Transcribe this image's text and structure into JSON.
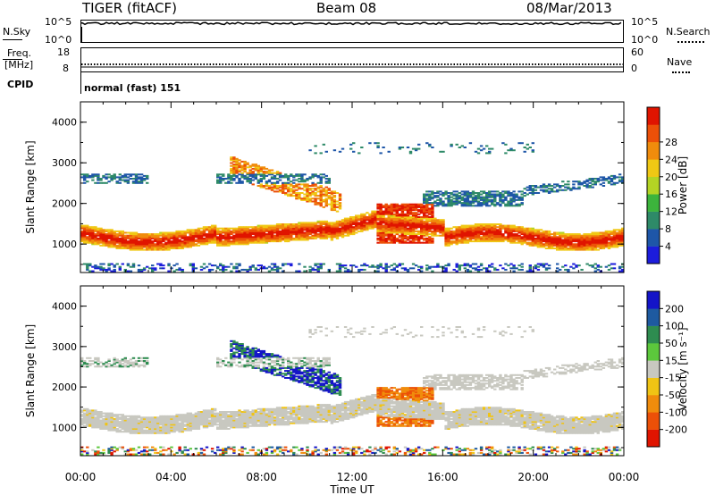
{
  "header": {
    "radar": "TIGER (fitACF)",
    "beam": "Beam 08",
    "date": "08/Mar/2013"
  },
  "top_panels": {
    "nsky": {
      "label": "N.Sky",
      "ticks": [
        "10^5",
        "10^0"
      ],
      "right_label": "N.Search",
      "right_ticks": [
        "10^5",
        "10^0"
      ]
    },
    "freq": {
      "label_line1": "Freq.",
      "label_line2": "[MHz]",
      "ticks": [
        "18",
        "8"
      ],
      "right_label": "Nave",
      "right_ticks": [
        "60",
        "0"
      ]
    },
    "cpid": {
      "label": "CPID",
      "text": "normal (fast) 151"
    }
  },
  "chart_data": [
    {
      "type": "heatmap",
      "name": "power",
      "ylabel": "Slant Range [km]",
      "xlabel": "Time UT",
      "ylim": [
        300,
        4500
      ],
      "yticks": [
        1000,
        2000,
        3000,
        4000
      ],
      "xlim": [
        0,
        24
      ],
      "xticks": [
        "00:00",
        "04:00",
        "08:00",
        "12:00",
        "16:00",
        "20:00",
        "00:00"
      ],
      "colorbar": {
        "label": "Power [dB]",
        "ticks": [
          "4",
          "8",
          "12",
          "16",
          "20",
          "24",
          "28"
        ],
        "colors": [
          "#1c1cdc",
          "#1e56a8",
          "#2e8a68",
          "#3cb43c",
          "#b4d424",
          "#f0c814",
          "#f08c0c",
          "#ec5008",
          "#e01400"
        ]
      }
    },
    {
      "type": "heatmap",
      "name": "velocity",
      "ylabel": "Slant Range [km]",
      "xlabel": "Time UT",
      "ylim": [
        300,
        4500
      ],
      "yticks": [
        1000,
        2000,
        3000,
        4000
      ],
      "xlim": [
        0,
        24
      ],
      "xticks": [
        "00:00",
        "04:00",
        "08:00",
        "12:00",
        "16:00",
        "20:00",
        "00:00"
      ],
      "colorbar": {
        "label": "Velocity [m s⁻¹]",
        "ticks": [
          "200",
          "100",
          "50",
          "15",
          "-15",
          "-50",
          "-100",
          "-200"
        ],
        "colors": [
          "#1414c8",
          "#1e5aa0",
          "#2e8c50",
          "#5cc83c",
          "#c8c8c0",
          "#f0c414",
          "#f08c0c",
          "#ec5008",
          "#e01400"
        ]
      }
    }
  ]
}
